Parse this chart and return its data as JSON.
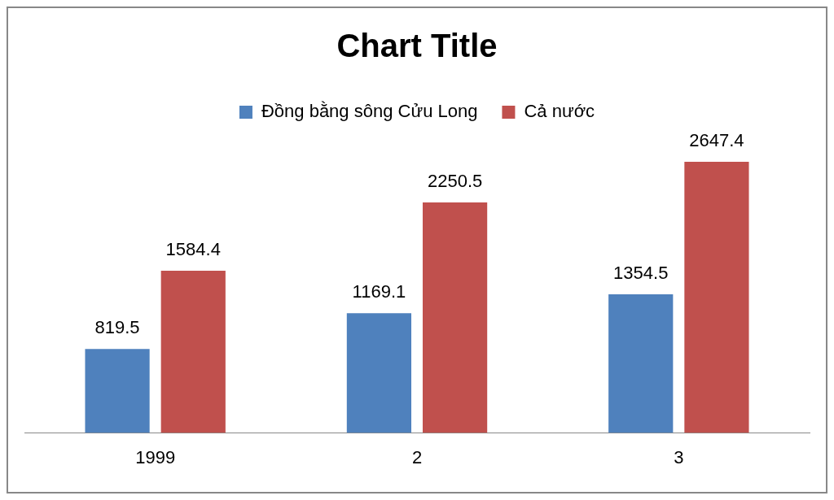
{
  "chart_data": {
    "type": "bar",
    "title": "Chart Title",
    "categories": [
      "1999",
      "2",
      "3"
    ],
    "series": [
      {
        "name": "Đồng bằng sông Cửu Long",
        "color": "#4f81bd",
        "values": [
          819.5,
          1169.1,
          1354.5
        ]
      },
      {
        "name": "Cả nước",
        "color": "#c0504d",
        "values": [
          1584.4,
          2250.5,
          2647.4
        ]
      }
    ],
    "data_labels": true,
    "legend": "top",
    "grid": false
  }
}
